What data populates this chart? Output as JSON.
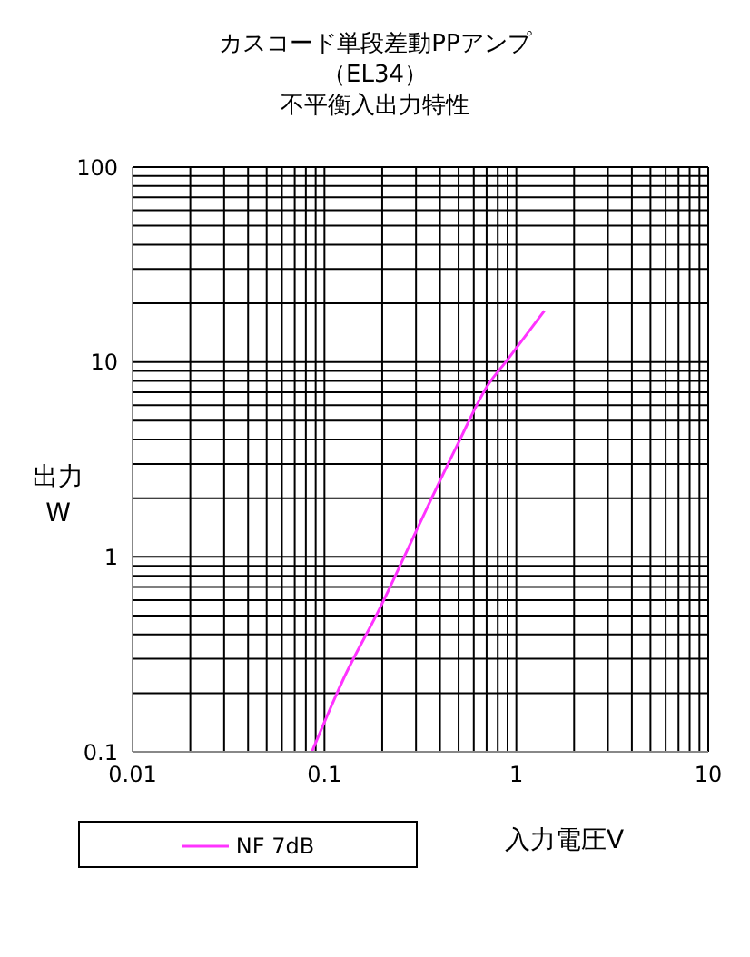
{
  "chart_data": {
    "type": "line",
    "title": "カスコード単段差動PPアンプ",
    "subtitle": "（EL34）",
    "annotations": [
      "不平衡入出力特性"
    ],
    "xlabel": "入力電圧V",
    "ylabel": "出力\nW",
    "log": "xy",
    "grid": true,
    "legend": "bottom",
    "marker": "none",
    "line_style": "solid",
    "xlim": [
      0.01,
      10
    ],
    "ylim": [
      0.1,
      100
    ],
    "xticks": [
      0.01,
      {
        "value": 0.02,
        "label": null
      },
      {
        "value": 0.03,
        "label": null
      },
      {
        "value": 0.04,
        "label": null
      },
      {
        "value": 0.05,
        "label": null
      },
      {
        "value": 0.06,
        "label": null
      },
      {
        "value": 0.07,
        "label": null
      },
      {
        "value": 0.08,
        "label": null
      },
      {
        "value": 0.09,
        "label": null
      },
      0.1,
      {
        "value": 0.2,
        "label": null
      },
      {
        "value": 0.3,
        "label": null
      },
      {
        "value": 0.4,
        "label": null
      },
      {
        "value": 0.5,
        "label": null
      },
      {
        "value": 0.6,
        "label": null
      },
      {
        "value": 0.7,
        "label": null
      },
      {
        "value": 0.8,
        "label": null
      },
      {
        "value": 0.9,
        "label": null
      },
      1,
      {
        "value": 2,
        "label": null
      },
      {
        "value": 3,
        "label": null
      },
      {
        "value": 4,
        "label": null
      },
      {
        "value": 5,
        "label": null
      },
      {
        "value": 6,
        "label": null
      },
      {
        "value": 7,
        "label": null
      },
      {
        "value": 8,
        "label": null
      },
      {
        "value": 9,
        "label": null
      },
      10
    ],
    "yticks": [
      0.1,
      {
        "value": 0.2,
        "label": null
      },
      {
        "value": 0.3,
        "label": null
      },
      {
        "value": 0.4,
        "label": null
      },
      {
        "value": 0.5,
        "label": null
      },
      {
        "value": 0.6,
        "label": null
      },
      {
        "value": 0.7,
        "label": null
      },
      {
        "value": 0.8,
        "label": null
      },
      {
        "value": 0.9,
        "label": null
      },
      1,
      {
        "value": 2,
        "label": null
      },
      {
        "value": 3,
        "label": null
      },
      {
        "value": 4,
        "label": null
      },
      {
        "value": 5,
        "label": null
      },
      {
        "value": 6,
        "label": null
      },
      {
        "value": 7,
        "label": null
      },
      {
        "value": 8,
        "label": null
      },
      {
        "value": 9,
        "label": null
      },
      10,
      {
        "value": 20,
        "label": null
      },
      {
        "value": 30,
        "label": null
      },
      {
        "value": 40,
        "label": null
      },
      {
        "value": 50,
        "label": null
      },
      {
        "value": 60,
        "label": null
      },
      {
        "value": 70,
        "label": null
      },
      {
        "value": 80,
        "label": null
      },
      {
        "value": 90,
        "label": null
      },
      100
    ],
    "x": [
      0.086,
      0.125,
      0.197,
      0.288,
      0.489,
      0.71,
      0.894,
      1.4
    ],
    "series": [
      {
        "name": "NF 7dB",
        "color": "#ff33ff",
        "values": [
          0.1,
          0.234,
          0.56,
          1.24,
          3.7,
          7.6,
          10.2,
          18.3
        ]
      }
    ]
  }
}
